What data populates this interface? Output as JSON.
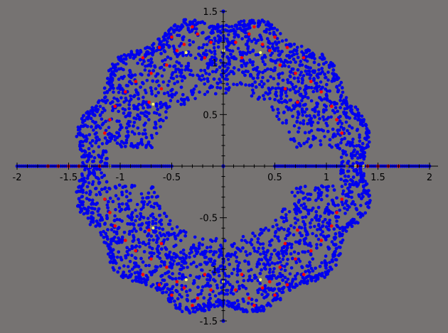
{
  "chart_data": {
    "type": "scatter",
    "title": "",
    "xlabel": "",
    "ylabel": "",
    "xlim": [
      -2,
      2
    ],
    "ylim": [
      -1.5,
      1.5
    ],
    "grid": false,
    "legend": "none",
    "background": "#767372",
    "x_ticks": [
      {
        "value": -2,
        "label": "-2"
      },
      {
        "value": -1.5,
        "label": "-1.5"
      },
      {
        "value": -1,
        "label": "-1"
      },
      {
        "value": -0.5,
        "label": "-0.5"
      },
      {
        "value": 0.5,
        "label": "0.5"
      },
      {
        "value": 1,
        "label": "1"
      },
      {
        "value": 1.5,
        "label": "1.5"
      },
      {
        "value": 2,
        "label": "2"
      }
    ],
    "y_ticks": [
      {
        "value": 1.5,
        "label": "1.5"
      },
      {
        "value": 1,
        "label": "1"
      },
      {
        "value": 0.5,
        "label": "0.5"
      },
      {
        "value": -0.5,
        "label": "-0.5"
      },
      {
        "value": -1,
        "label": "-1"
      },
      {
        "value": -1.5,
        "label": "-1.5"
      }
    ],
    "series": [
      {
        "color": "#0000ee",
        "description": "dense blue point cloud: annulus symmetric about both axes plus points along the real axis",
        "annulus": {
          "inner_radius": 0.7,
          "outer_radius": 1.42,
          "spike_count": 12
        },
        "real_axis_segments": [
          [
            -2.0,
            -0.5
          ],
          [
            0.5,
            2.0
          ]
        ],
        "x": [
          0.0,
          0.0,
          0.0,
          0.0,
          0.0
        ],
        "y": [
          1.0,
          -1.0,
          1.5,
          -1.5,
          0.0
        ]
      },
      {
        "color": "#ff0000",
        "x": [
          0.12,
          0.18,
          0.25,
          -0.12,
          -0.18,
          -0.25,
          0.45,
          0.5,
          0.55,
          0.62,
          0.7,
          0.78,
          0.85,
          -0.45,
          -0.5,
          -0.55,
          -0.62,
          -0.7,
          -0.78,
          -0.85,
          0.95,
          1.05,
          1.1,
          1.15,
          -0.95,
          -1.05,
          -1.1,
          -1.15,
          0.3,
          0.38,
          -0.3,
          -0.38,
          0.6,
          0.72,
          -0.6,
          -0.72,
          0.12,
          0.18,
          0.25,
          -0.12,
          -0.18,
          -0.25,
          0.45,
          0.5,
          0.55,
          0.62,
          0.7,
          0.78,
          0.85,
          -0.45,
          -0.5,
          -0.55,
          -0.62,
          -0.7,
          -0.78,
          -0.85,
          0.95,
          1.05,
          1.1,
          1.15,
          -0.95,
          -1.05,
          -1.1,
          -1.15,
          0.3,
          0.38,
          -0.3,
          -0.38,
          0.6,
          0.72,
          -0.6,
          -0.72,
          -1.7,
          -1.6,
          -1.5,
          -1.4,
          -1.3,
          -1.2,
          1.2,
          1.3,
          1.4,
          1.5,
          1.6,
          1.7
        ],
        "y": [
          1.2,
          1.05,
          1.28,
          1.2,
          1.05,
          1.28,
          1.12,
          1.25,
          0.98,
          1.15,
          0.9,
          1.05,
          0.82,
          1.12,
          1.25,
          0.98,
          1.15,
          0.9,
          1.05,
          0.82,
          0.72,
          0.58,
          0.45,
          0.32,
          0.72,
          0.58,
          0.45,
          0.32,
          1.35,
          1.18,
          1.35,
          1.18,
          0.75,
          0.62,
          0.75,
          0.62,
          -1.2,
          -1.05,
          -1.28,
          -1.2,
          -1.05,
          -1.28,
          -1.12,
          -1.25,
          -0.98,
          -1.15,
          -0.9,
          -1.05,
          -0.82,
          -1.12,
          -1.25,
          -0.98,
          -1.15,
          -0.9,
          -1.05,
          -0.82,
          -0.72,
          -0.58,
          -0.45,
          -0.32,
          -0.72,
          -0.58,
          -0.45,
          -0.32,
          -1.35,
          -1.18,
          -1.35,
          -1.18,
          -0.75,
          -0.62,
          -0.75,
          -0.62,
          0,
          0,
          0,
          0,
          0,
          0,
          0,
          0,
          0,
          0,
          0,
          0
        ]
      },
      {
        "color": "#ffff66",
        "x": [
          -0.36,
          0.36,
          -0.68,
          0.0,
          -0.36,
          0.36,
          -0.68,
          0.0,
          -1.3,
          -1.1,
          1.2,
          1.28,
          1.36
        ],
        "y": [
          1.1,
          1.1,
          0.6,
          1.12,
          -1.1,
          -1.1,
          -0.6,
          -1.12,
          0,
          0,
          0,
          0,
          0
        ]
      }
    ]
  }
}
